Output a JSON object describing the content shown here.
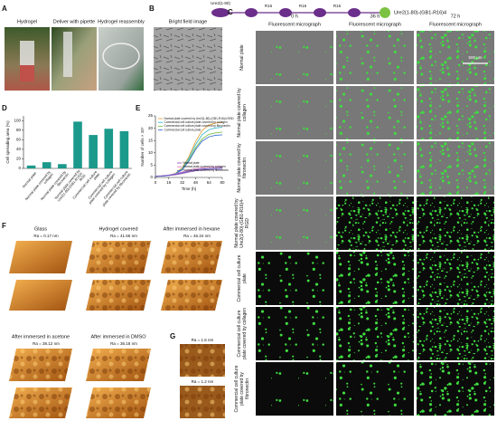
{
  "construct": {
    "n_term_label": "Ure2(1-80)",
    "repeat_labels": [
      "R16",
      "R16",
      "R16"
    ],
    "name": "Ure2(1-80)-(GB1-R16)4"
  },
  "panel_a": {
    "label": "A",
    "captions": [
      "Hydrogel",
      "Deliver with pipette",
      "Hydrogel reassembly"
    ]
  },
  "panel_b": {
    "label": "B",
    "caption": "Bright field image"
  },
  "panel_c": {
    "label": "C",
    "columns": [
      {
        "time": "0 h",
        "subtitle": "Fluorescent micrograph"
      },
      {
        "time": "36 h",
        "subtitle": "Fluorescent micrograph"
      },
      {
        "time": "72 h",
        "subtitle": "Fluorescent micrograph"
      }
    ],
    "rows": [
      "Normal plate",
      "Normal plate covered by collagen",
      "Normal plate covered by fibronectin",
      "Normal plate covered by Ure2(1-80)-(GB1-R16)4-RGD",
      "Commercial cell culture plate",
      "Commercial cell culture plate covered by collagen",
      "Commercial cell culture plate covered by fibronectin"
    ],
    "scale_bar": "500 μm"
  },
  "chart_data": [
    {
      "panel_label": "D",
      "type": "bar",
      "y_label": "Cell spreading area (%)",
      "categories": [
        "Normal plate",
        "Normal plate covered by collagen",
        "Normal plate covered by fibronectin",
        "Normal plate covered by Ure2(1-80)-(GB1-R16)4-RGD",
        "Commercial cell culture plate",
        "Commercial cell culture plate covered by collagen",
        "Commercial cell culture plate covered by fibronectin"
      ],
      "values": [
        6,
        13,
        9,
        98,
        70,
        83,
        78
      ],
      "color": "#1b998b",
      "ylim": [
        0,
        110
      ],
      "yticks": [
        0,
        20,
        40,
        60,
        80,
        100
      ]
    },
    {
      "panel_label": "E",
      "type": "line",
      "x_label": "Time (h)",
      "y_label": "Number of cells × 10⁴",
      "x": [
        0,
        8,
        16,
        24,
        32,
        40,
        48,
        56,
        64,
        72,
        80
      ],
      "xlim": [
        0,
        80
      ],
      "xticks": [
        0,
        16,
        32,
        48,
        64,
        80
      ],
      "ylim": [
        0,
        25
      ],
      "yticks": [
        0,
        5,
        10,
        15,
        20,
        25
      ],
      "series": [
        {
          "name": "Normal plate covered by Ure2(1-80)-(GB1-R16)4-RGD",
          "color": "#e8a33d",
          "values": [
            0.5,
            0.6,
            0.9,
            1.7,
            3.9,
            8.4,
            14.6,
            19.1,
            21.3,
            22.1,
            22.4
          ]
        },
        {
          "name": "Commercial cell culture plate covered by collagen",
          "color": "#3bb9c9",
          "values": [
            0.5,
            0.6,
            0.8,
            1.6,
            3.5,
            7.7,
            13.3,
            17.4,
            19.4,
            20.1,
            20.4
          ]
        },
        {
          "name": "Commercial cell culture plate covered by fibronectin",
          "color": "#7bc043",
          "values": [
            0.5,
            0.6,
            0.8,
            1.5,
            3.2,
            7.0,
            12.0,
            15.7,
            17.5,
            18.1,
            18.4
          ]
        },
        {
          "name": "Commercial cell culture plate",
          "color": "#3a6fd8",
          "values": [
            0.5,
            0.6,
            0.8,
            1.4,
            3.1,
            6.6,
            11.3,
            14.8,
            16.5,
            17.1,
            17.3
          ]
        },
        {
          "name": "Normal plate",
          "color": "#9b59b6",
          "values": [
            0.5,
            0.6,
            0.8,
            1.1,
            1.6,
            2.2,
            2.7,
            3.0,
            3.2,
            3.3,
            3.3
          ]
        },
        {
          "name": "Normal plate covered by collagen",
          "color": "#e377c2",
          "values": [
            0.5,
            0.7,
            1.0,
            1.5,
            2.2,
            2.9,
            3.5,
            3.9,
            4.1,
            4.2,
            4.2
          ]
        },
        {
          "name": "Normal plate covered by fibronectin",
          "color": "#5b5fc7",
          "values": [
            0.5,
            0.6,
            0.9,
            1.3,
            1.9,
            2.5,
            3.1,
            3.4,
            3.6,
            3.7,
            3.8
          ]
        }
      ]
    }
  ],
  "panel_f": {
    "label": "F",
    "images": [
      {
        "title": "Glass",
        "ra": "Ra = 0.17 nm"
      },
      {
        "title": "Hydrogel covered",
        "ra": "Ra = 41.56 nm"
      },
      {
        "title": "After immersed in hexane",
        "ra": "Ra = 46.34 nm"
      },
      {
        "title": "After immersed in acetone",
        "ra": "Ra = 38.12 nm"
      },
      {
        "title": "After immersed in DMSO",
        "ra": "Ra = 36.18 nm"
      }
    ]
  },
  "panel_g": {
    "label": "G",
    "ra": [
      "Ra = 1.6 nm",
      "Ra = 1.2 nm"
    ]
  }
}
